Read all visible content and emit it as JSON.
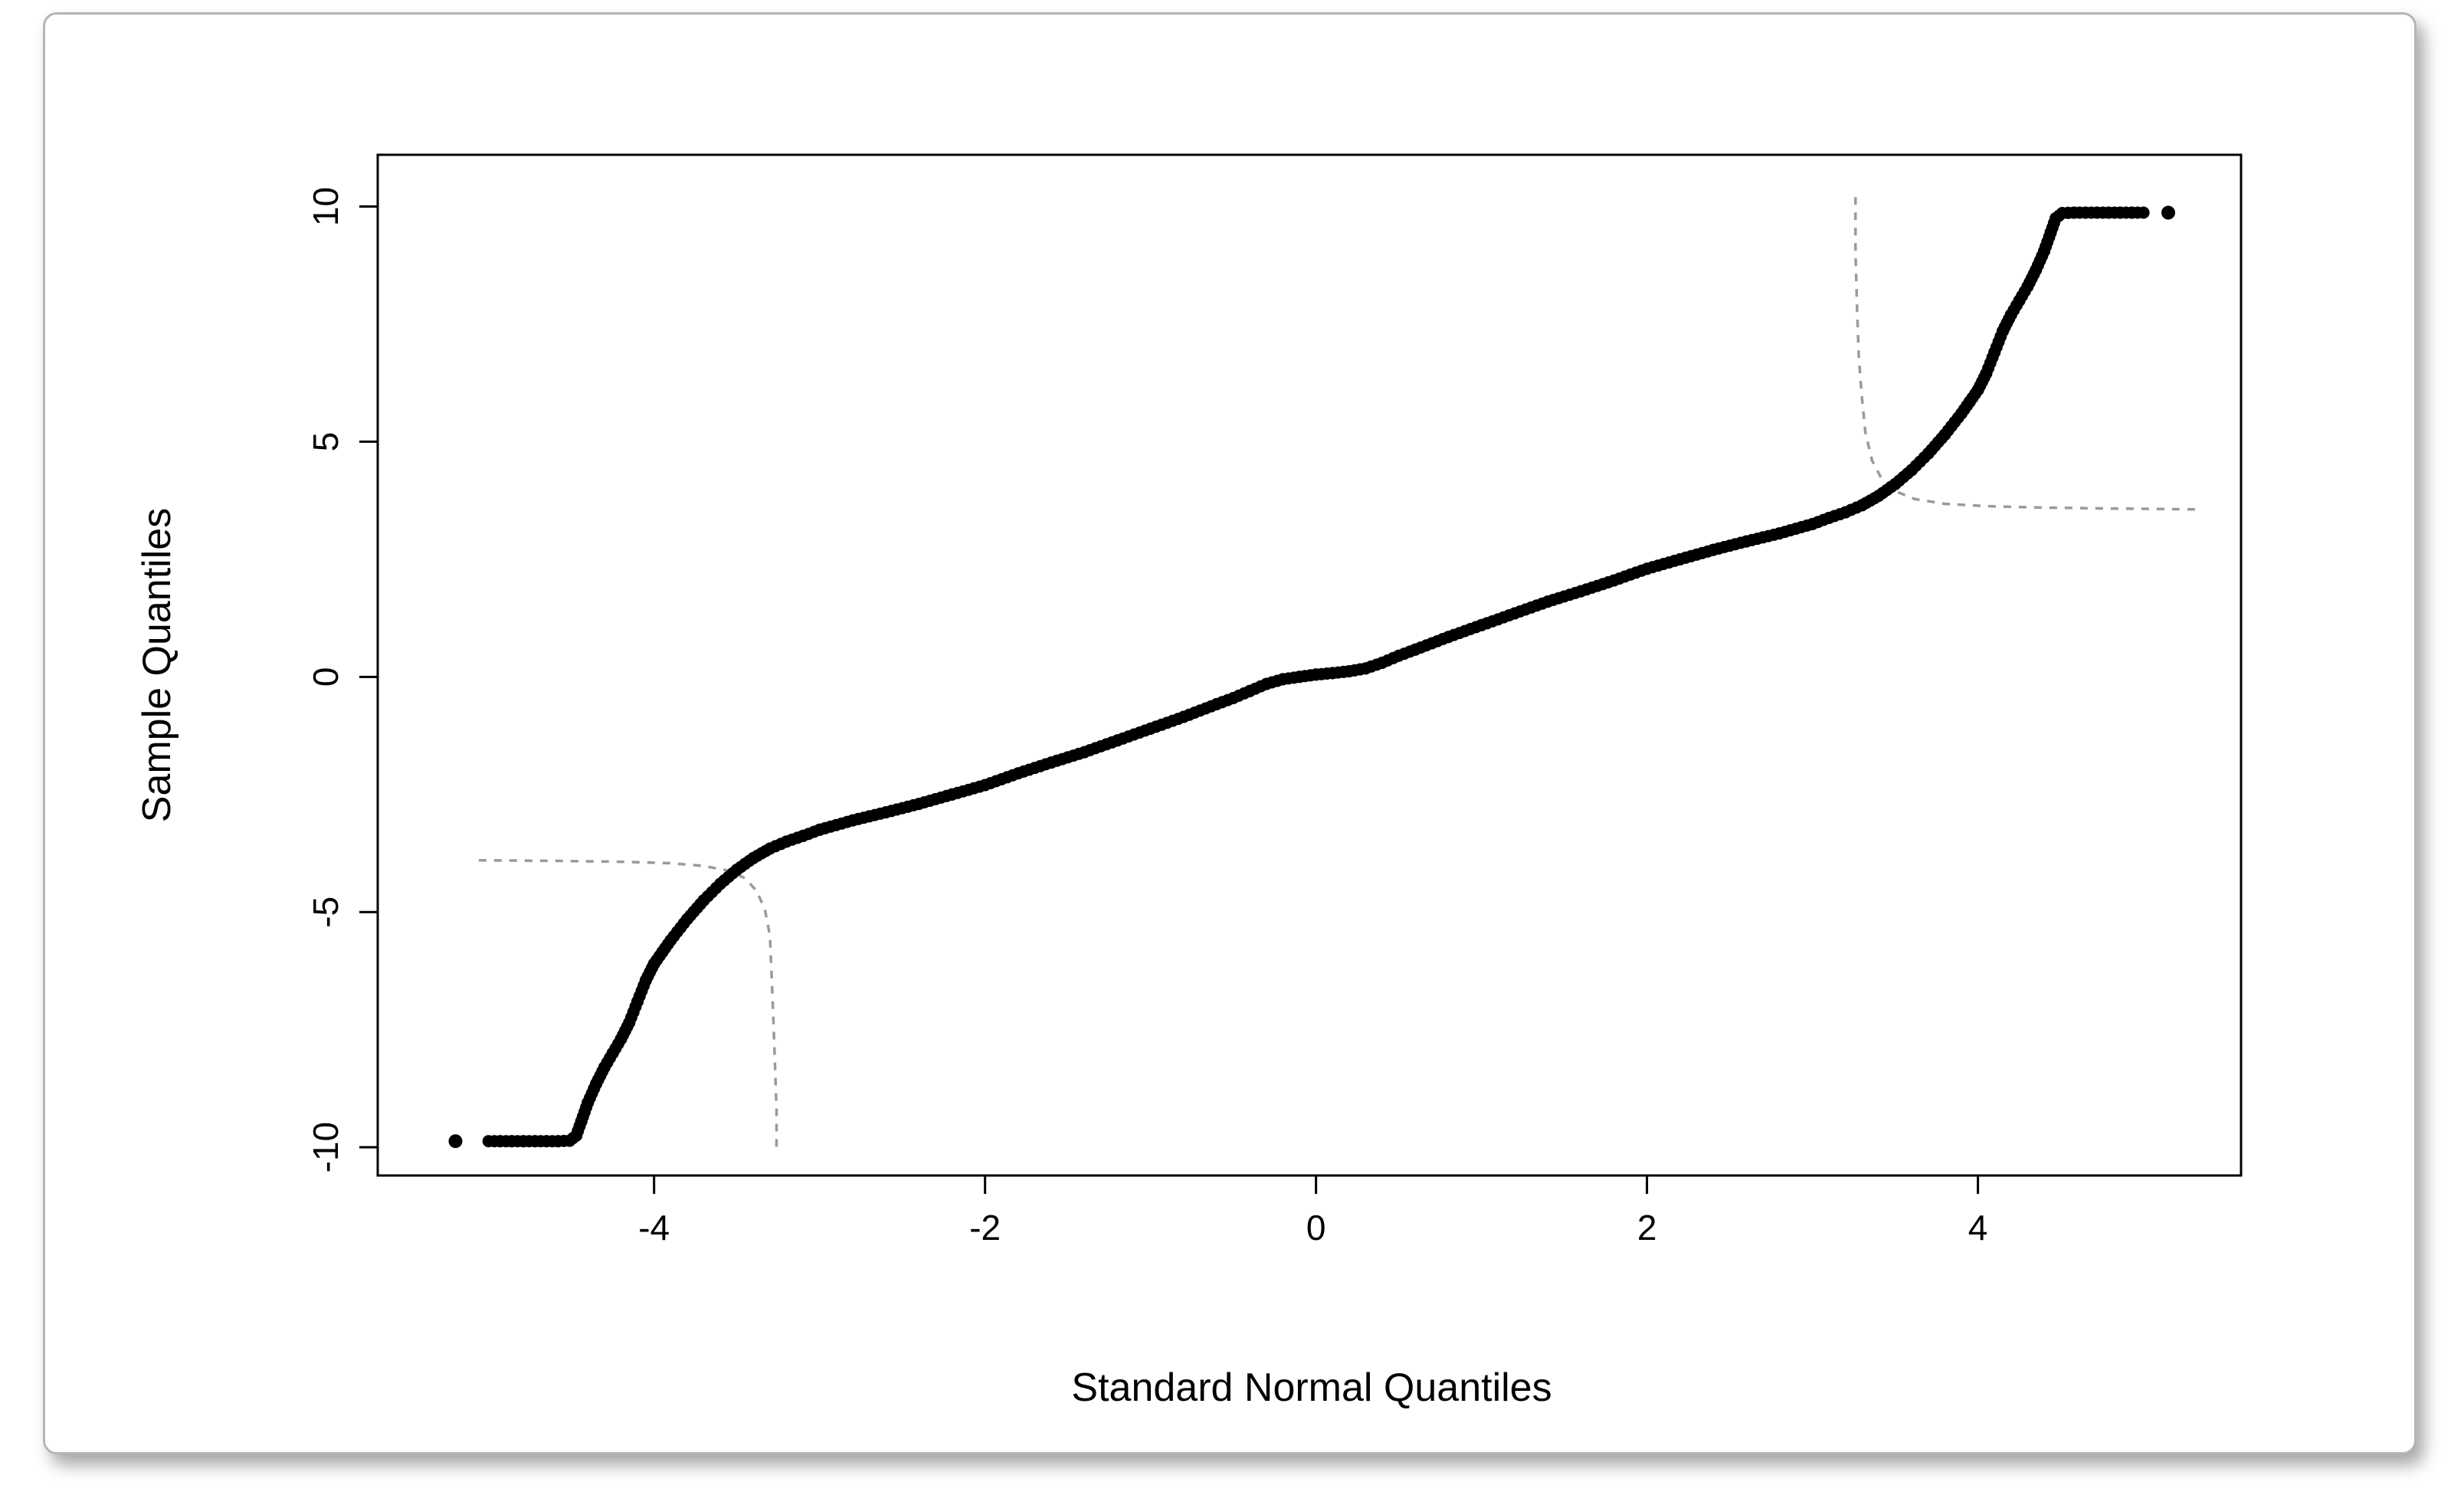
{
  "figure": {
    "card_border_color": "#b5b5b5",
    "background_color": "#ffffff"
  },
  "chart_data": {
    "type": "scatter",
    "subtype": "qq-plot",
    "title": "",
    "xlabel": "Standard Normal Quantiles",
    "ylabel": "Sample Quantiles",
    "xlim": [
      -5.67,
      5.59
    ],
    "ylim": [
      -10.6,
      11.1
    ],
    "xticks": [
      -4,
      -2,
      0,
      2,
      4
    ],
    "yticks": [
      -10,
      -5,
      0,
      5,
      10
    ],
    "grid": false,
    "legend": "none",
    "point_color": "#000000",
    "reference_color": "#9a9a9a",
    "series": [
      {
        "name": "sample-quantiles-vs-normal",
        "points": [
          [
            -5.0,
            -9.87
          ],
          [
            -4.93,
            -9.87
          ],
          [
            -4.86,
            -9.87
          ],
          [
            -4.79,
            -9.87
          ],
          [
            -4.72,
            -9.87
          ],
          [
            -4.65,
            -9.87
          ],
          [
            -4.58,
            -9.87
          ],
          [
            -4.51,
            -9.86
          ],
          [
            -4.47,
            -9.75
          ],
          [
            -4.44,
            -9.45
          ],
          [
            -4.4,
            -9.05
          ],
          [
            -4.35,
            -8.65
          ],
          [
            -4.3,
            -8.3
          ],
          [
            -4.25,
            -8.0
          ],
          [
            -4.2,
            -7.7
          ],
          [
            -4.15,
            -7.35
          ],
          [
            -4.1,
            -6.9
          ],
          [
            -4.05,
            -6.45
          ],
          [
            -4.0,
            -6.1
          ],
          [
            -3.95,
            -5.85
          ],
          [
            -3.9,
            -5.6
          ],
          [
            -3.8,
            -5.15
          ],
          [
            -3.7,
            -4.75
          ],
          [
            -3.6,
            -4.4
          ],
          [
            -3.5,
            -4.1
          ],
          [
            -3.4,
            -3.85
          ],
          [
            -3.3,
            -3.65
          ],
          [
            -3.2,
            -3.5
          ],
          [
            -3.1,
            -3.38
          ],
          [
            -3.0,
            -3.25
          ],
          [
            -2.8,
            -3.05
          ],
          [
            -2.6,
            -2.88
          ],
          [
            -2.4,
            -2.7
          ],
          [
            -2.2,
            -2.5
          ],
          [
            -2.0,
            -2.3
          ],
          [
            -1.8,
            -2.05
          ],
          [
            -1.6,
            -1.82
          ],
          [
            -1.4,
            -1.6
          ],
          [
            -1.2,
            -1.35
          ],
          [
            -1.0,
            -1.1
          ],
          [
            -0.8,
            -0.85
          ],
          [
            -0.6,
            -0.58
          ],
          [
            -0.5,
            -0.45
          ],
          [
            -0.4,
            -0.3
          ],
          [
            -0.3,
            -0.15
          ],
          [
            -0.2,
            -0.05
          ],
          [
            -0.1,
            0.0
          ],
          [
            0.0,
            0.05
          ],
          [
            0.1,
            0.08
          ],
          [
            0.2,
            0.12
          ],
          [
            0.3,
            0.18
          ],
          [
            0.4,
            0.3
          ],
          [
            0.5,
            0.45
          ],
          [
            0.6,
            0.58
          ],
          [
            0.8,
            0.85
          ],
          [
            1.0,
            1.1
          ],
          [
            1.2,
            1.35
          ],
          [
            1.4,
            1.6
          ],
          [
            1.6,
            1.82
          ],
          [
            1.8,
            2.05
          ],
          [
            2.0,
            2.3
          ],
          [
            2.2,
            2.5
          ],
          [
            2.4,
            2.7
          ],
          [
            2.6,
            2.88
          ],
          [
            2.8,
            3.05
          ],
          [
            3.0,
            3.25
          ],
          [
            3.1,
            3.38
          ],
          [
            3.2,
            3.5
          ],
          [
            3.3,
            3.65
          ],
          [
            3.4,
            3.85
          ],
          [
            3.5,
            4.1
          ],
          [
            3.6,
            4.4
          ],
          [
            3.7,
            4.75
          ],
          [
            3.8,
            5.15
          ],
          [
            3.9,
            5.6
          ],
          [
            3.95,
            5.85
          ],
          [
            4.0,
            6.1
          ],
          [
            4.05,
            6.45
          ],
          [
            4.1,
            6.9
          ],
          [
            4.15,
            7.35
          ],
          [
            4.2,
            7.7
          ],
          [
            4.25,
            8.0
          ],
          [
            4.3,
            8.3
          ],
          [
            4.35,
            8.65
          ],
          [
            4.4,
            9.05
          ],
          [
            4.44,
            9.45
          ],
          [
            4.47,
            9.75
          ],
          [
            4.51,
            9.86
          ],
          [
            4.58,
            9.87
          ],
          [
            4.65,
            9.87
          ],
          [
            4.72,
            9.87
          ],
          [
            4.79,
            9.87
          ],
          [
            4.86,
            9.87
          ],
          [
            4.93,
            9.87
          ],
          [
            5.0,
            9.87
          ]
        ]
      }
    ],
    "outlier_points": [
      [
        -5.2,
        -9.87
      ],
      [
        5.15,
        9.87
      ]
    ],
    "reference_curves": [
      {
        "name": "lower-left-dashed-bound",
        "style": "dashed",
        "points": [
          [
            -5.06,
            -3.9
          ],
          [
            -4.6,
            -3.91
          ],
          [
            -4.2,
            -3.93
          ],
          [
            -3.9,
            -3.96
          ],
          [
            -3.7,
            -4.02
          ],
          [
            -3.55,
            -4.12
          ],
          [
            -3.45,
            -4.28
          ],
          [
            -3.38,
            -4.55
          ],
          [
            -3.33,
            -4.95
          ],
          [
            -3.3,
            -5.5
          ],
          [
            -3.29,
            -6.3
          ],
          [
            -3.28,
            -7.2
          ],
          [
            -3.27,
            -8.2
          ],
          [
            -3.26,
            -9.2
          ],
          [
            -3.26,
            -10.1
          ]
        ]
      },
      {
        "name": "upper-right-dashed-bound",
        "style": "dashed",
        "points": [
          [
            3.26,
            10.2
          ],
          [
            3.26,
            9.0
          ],
          [
            3.27,
            7.8
          ],
          [
            3.28,
            6.8
          ],
          [
            3.3,
            5.9
          ],
          [
            3.32,
            5.2
          ],
          [
            3.36,
            4.6
          ],
          [
            3.42,
            4.2
          ],
          [
            3.5,
            3.95
          ],
          [
            3.62,
            3.78
          ],
          [
            3.8,
            3.68
          ],
          [
            4.05,
            3.63
          ],
          [
            4.4,
            3.6
          ],
          [
            4.8,
            3.58
          ],
          [
            5.1,
            3.57
          ],
          [
            5.35,
            3.56
          ]
        ]
      }
    ]
  }
}
